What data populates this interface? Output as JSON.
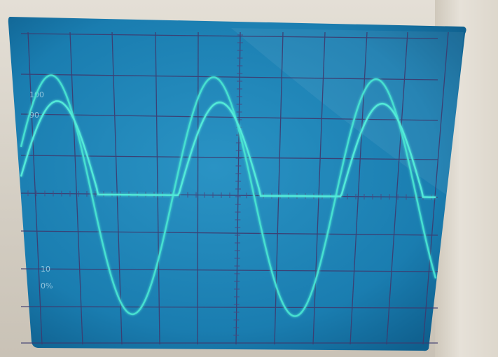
{
  "scope": {
    "screen_color": "#1b7fae",
    "grid_color": "#3e3a6e",
    "trace_color": "#46e0d0",
    "scale_labels": {
      "label_100": "100",
      "label_90": "90",
      "label_10": "10",
      "label_0": "0%"
    },
    "icons": [
      "oscilloscope-screen"
    ]
  }
}
